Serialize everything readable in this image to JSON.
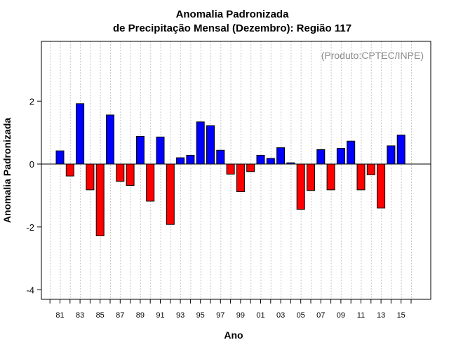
{
  "chart_data": {
    "type": "bar",
    "title": "Anomalia Padronizada",
    "subtitle": "de Precipitação Mensal (Dezembro): Região 117",
    "xlabel": "Ano",
    "ylabel": "Anomalia Padronizada",
    "watermark": "(Produto:CPTEC/INPE)",
    "ylim": [
      -4.3,
      3.9
    ],
    "yticks": [
      -4,
      -2,
      0,
      2
    ],
    "ytick_labels": [
      "-4",
      "-2",
      "0",
      "2"
    ],
    "years": [
      1981,
      1982,
      1983,
      1984,
      1985,
      1986,
      1987,
      1988,
      1989,
      1990,
      1991,
      1992,
      1993,
      1994,
      1995,
      1996,
      1997,
      1998,
      1999,
      2000,
      2001,
      2002,
      2003,
      2004,
      2005,
      2006,
      2007,
      2008,
      2009,
      2010,
      2011,
      2012,
      2013,
      2014,
      2015
    ],
    "xtick_years": [
      1981,
      1983,
      1985,
      1987,
      1989,
      1991,
      1993,
      1995,
      1997,
      1999,
      2001,
      2003,
      2005,
      2007,
      2009,
      2011,
      2013,
      2015
    ],
    "xtick_labels": [
      "81",
      "83",
      "85",
      "87",
      "89",
      "91",
      "93",
      "95",
      "97",
      "99",
      "01",
      "03",
      "05",
      "07",
      "09",
      "11",
      "13",
      "15"
    ],
    "values": [
      0.42,
      -0.38,
      1.92,
      -0.82,
      -2.28,
      1.56,
      -0.55,
      -0.68,
      0.88,
      -1.18,
      0.86,
      -1.92,
      0.2,
      0.28,
      1.34,
      1.22,
      0.44,
      -0.32,
      -0.88,
      -0.24,
      0.28,
      0.18,
      0.52,
      0.04,
      -1.44,
      -0.84,
      0.46,
      -0.82,
      0.5,
      0.73,
      -0.82,
      -0.34,
      -1.4,
      0.58,
      0.92
    ],
    "colors": {
      "positive": "#0000ff",
      "negative": "#ff0000",
      "grid": "#c8c8c8"
    },
    "grid": "vertical-dotted"
  }
}
